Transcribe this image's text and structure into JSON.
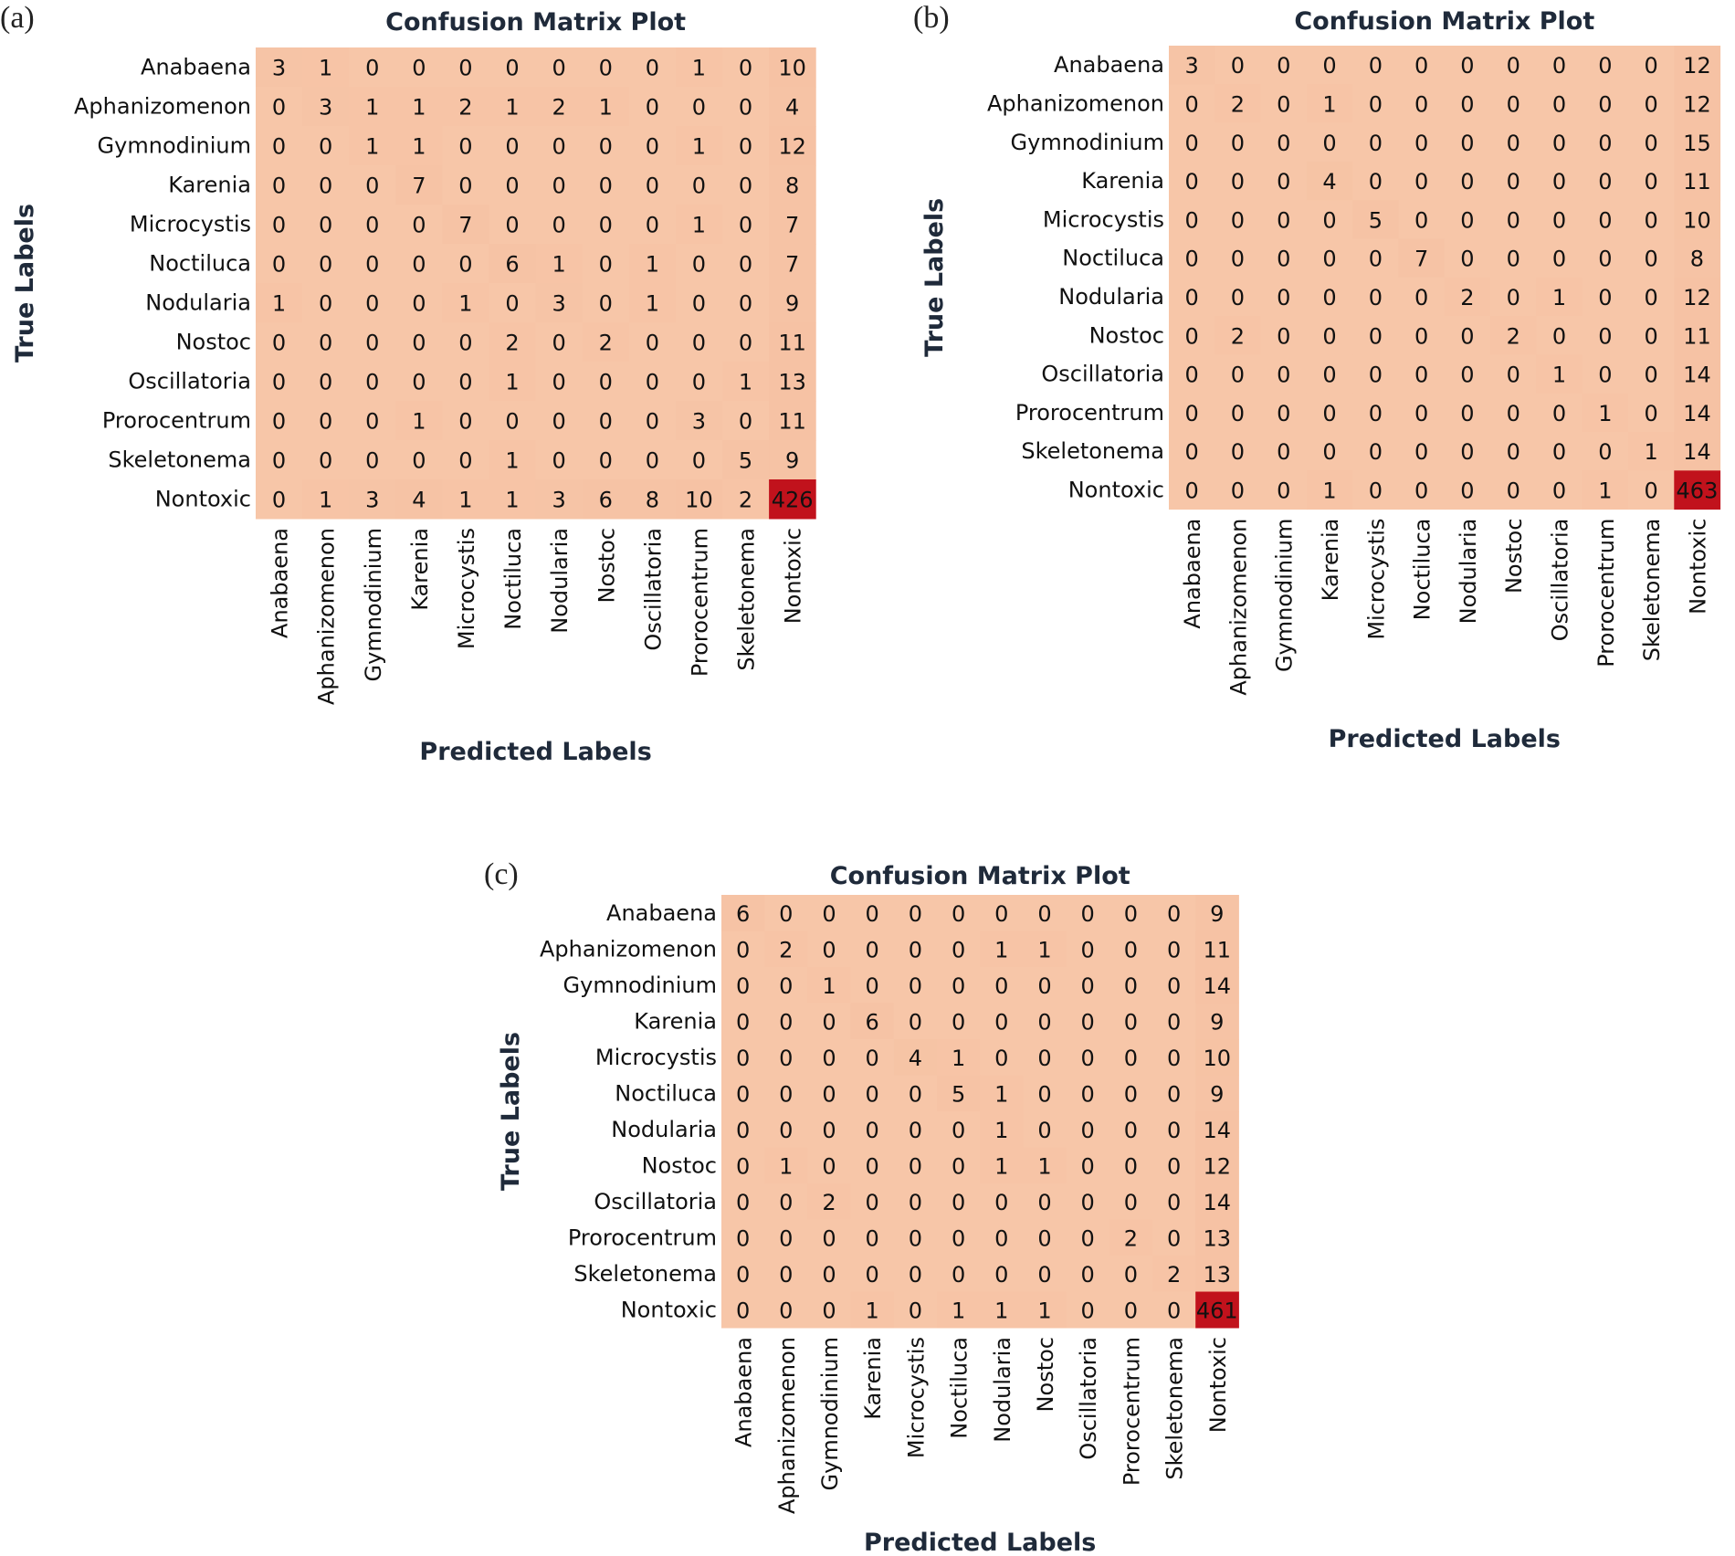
{
  "colors": {
    "base": "#f7c6a8",
    "peak": "#c1121c",
    "text": "#111111",
    "title": "#1f2a3a"
  },
  "chart_data": [
    {
      "type": "heatmap",
      "panel": "(a)",
      "title": "Confusion Matrix Plot",
      "xlabel": "Predicted Labels",
      "ylabel": "True Labels",
      "labels": [
        "Anabaena",
        "Aphanizomenon",
        "Gymnodinium",
        "Karenia",
        "Microcystis",
        "Noctiluca",
        "Nodularia",
        "Nostoc",
        "Oscillatoria",
        "Prorocentrum",
        "Skeletonema",
        "Nontoxic"
      ],
      "matrix": [
        [
          3,
          1,
          0,
          0,
          0,
          0,
          0,
          0,
          0,
          1,
          0,
          10
        ],
        [
          0,
          3,
          1,
          1,
          2,
          1,
          2,
          1,
          0,
          0,
          0,
          4
        ],
        [
          0,
          0,
          1,
          1,
          0,
          0,
          0,
          0,
          0,
          1,
          0,
          12
        ],
        [
          0,
          0,
          0,
          7,
          0,
          0,
          0,
          0,
          0,
          0,
          0,
          8
        ],
        [
          0,
          0,
          0,
          0,
          7,
          0,
          0,
          0,
          0,
          1,
          0,
          7
        ],
        [
          0,
          0,
          0,
          0,
          0,
          6,
          1,
          0,
          1,
          0,
          0,
          7
        ],
        [
          1,
          0,
          0,
          0,
          1,
          0,
          3,
          0,
          1,
          0,
          0,
          9
        ],
        [
          0,
          0,
          0,
          0,
          0,
          2,
          0,
          2,
          0,
          0,
          0,
          11
        ],
        [
          0,
          0,
          0,
          0,
          0,
          1,
          0,
          0,
          0,
          0,
          1,
          13
        ],
        [
          0,
          0,
          0,
          1,
          0,
          0,
          0,
          0,
          0,
          3,
          0,
          11
        ],
        [
          0,
          0,
          0,
          0,
          0,
          1,
          0,
          0,
          0,
          0,
          5,
          9
        ],
        [
          0,
          1,
          3,
          4,
          1,
          1,
          3,
          6,
          8,
          10,
          2,
          426
        ]
      ]
    },
    {
      "type": "heatmap",
      "panel": "(b)",
      "title": "Confusion Matrix Plot",
      "xlabel": "Predicted Labels",
      "ylabel": "True Labels",
      "labels": [
        "Anabaena",
        "Aphanizomenon",
        "Gymnodinium",
        "Karenia",
        "Microcystis",
        "Noctiluca",
        "Nodularia",
        "Nostoc",
        "Oscillatoria",
        "Prorocentrum",
        "Skeletonema",
        "Nontoxic"
      ],
      "matrix": [
        [
          3,
          0,
          0,
          0,
          0,
          0,
          0,
          0,
          0,
          0,
          0,
          12
        ],
        [
          0,
          2,
          0,
          1,
          0,
          0,
          0,
          0,
          0,
          0,
          0,
          12
        ],
        [
          0,
          0,
          0,
          0,
          0,
          0,
          0,
          0,
          0,
          0,
          0,
          15
        ],
        [
          0,
          0,
          0,
          4,
          0,
          0,
          0,
          0,
          0,
          0,
          0,
          11
        ],
        [
          0,
          0,
          0,
          0,
          5,
          0,
          0,
          0,
          0,
          0,
          0,
          10
        ],
        [
          0,
          0,
          0,
          0,
          0,
          7,
          0,
          0,
          0,
          0,
          0,
          8
        ],
        [
          0,
          0,
          0,
          0,
          0,
          0,
          2,
          0,
          1,
          0,
          0,
          12
        ],
        [
          0,
          2,
          0,
          0,
          0,
          0,
          0,
          2,
          0,
          0,
          0,
          11
        ],
        [
          0,
          0,
          0,
          0,
          0,
          0,
          0,
          0,
          1,
          0,
          0,
          14
        ],
        [
          0,
          0,
          0,
          0,
          0,
          0,
          0,
          0,
          0,
          1,
          0,
          14
        ],
        [
          0,
          0,
          0,
          0,
          0,
          0,
          0,
          0,
          0,
          0,
          1,
          14
        ],
        [
          0,
          0,
          0,
          1,
          0,
          0,
          0,
          0,
          0,
          1,
          0,
          463
        ]
      ]
    },
    {
      "type": "heatmap",
      "panel": "(c)",
      "title": "Confusion Matrix Plot",
      "xlabel": "Predicted Labels",
      "ylabel": "True Labels",
      "labels": [
        "Anabaena",
        "Aphanizomenon",
        "Gymnodinium",
        "Karenia",
        "Microcystis",
        "Noctiluca",
        "Nodularia",
        "Nostoc",
        "Oscillatoria",
        "Prorocentrum",
        "Skeletonema",
        "Nontoxic"
      ],
      "matrix": [
        [
          6,
          0,
          0,
          0,
          0,
          0,
          0,
          0,
          0,
          0,
          0,
          9
        ],
        [
          0,
          2,
          0,
          0,
          0,
          0,
          1,
          1,
          0,
          0,
          0,
          11
        ],
        [
          0,
          0,
          1,
          0,
          0,
          0,
          0,
          0,
          0,
          0,
          0,
          14
        ],
        [
          0,
          0,
          0,
          6,
          0,
          0,
          0,
          0,
          0,
          0,
          0,
          9
        ],
        [
          0,
          0,
          0,
          0,
          4,
          1,
          0,
          0,
          0,
          0,
          0,
          10
        ],
        [
          0,
          0,
          0,
          0,
          0,
          5,
          1,
          0,
          0,
          0,
          0,
          9
        ],
        [
          0,
          0,
          0,
          0,
          0,
          0,
          1,
          0,
          0,
          0,
          0,
          14
        ],
        [
          0,
          1,
          0,
          0,
          0,
          0,
          1,
          1,
          0,
          0,
          0,
          12
        ],
        [
          0,
          0,
          2,
          0,
          0,
          0,
          0,
          0,
          0,
          0,
          0,
          14
        ],
        [
          0,
          0,
          0,
          0,
          0,
          0,
          0,
          0,
          0,
          2,
          0,
          13
        ],
        [
          0,
          0,
          0,
          0,
          0,
          0,
          0,
          0,
          0,
          0,
          2,
          13
        ],
        [
          0,
          0,
          0,
          1,
          0,
          1,
          1,
          1,
          0,
          0,
          0,
          461
        ]
      ]
    }
  ]
}
